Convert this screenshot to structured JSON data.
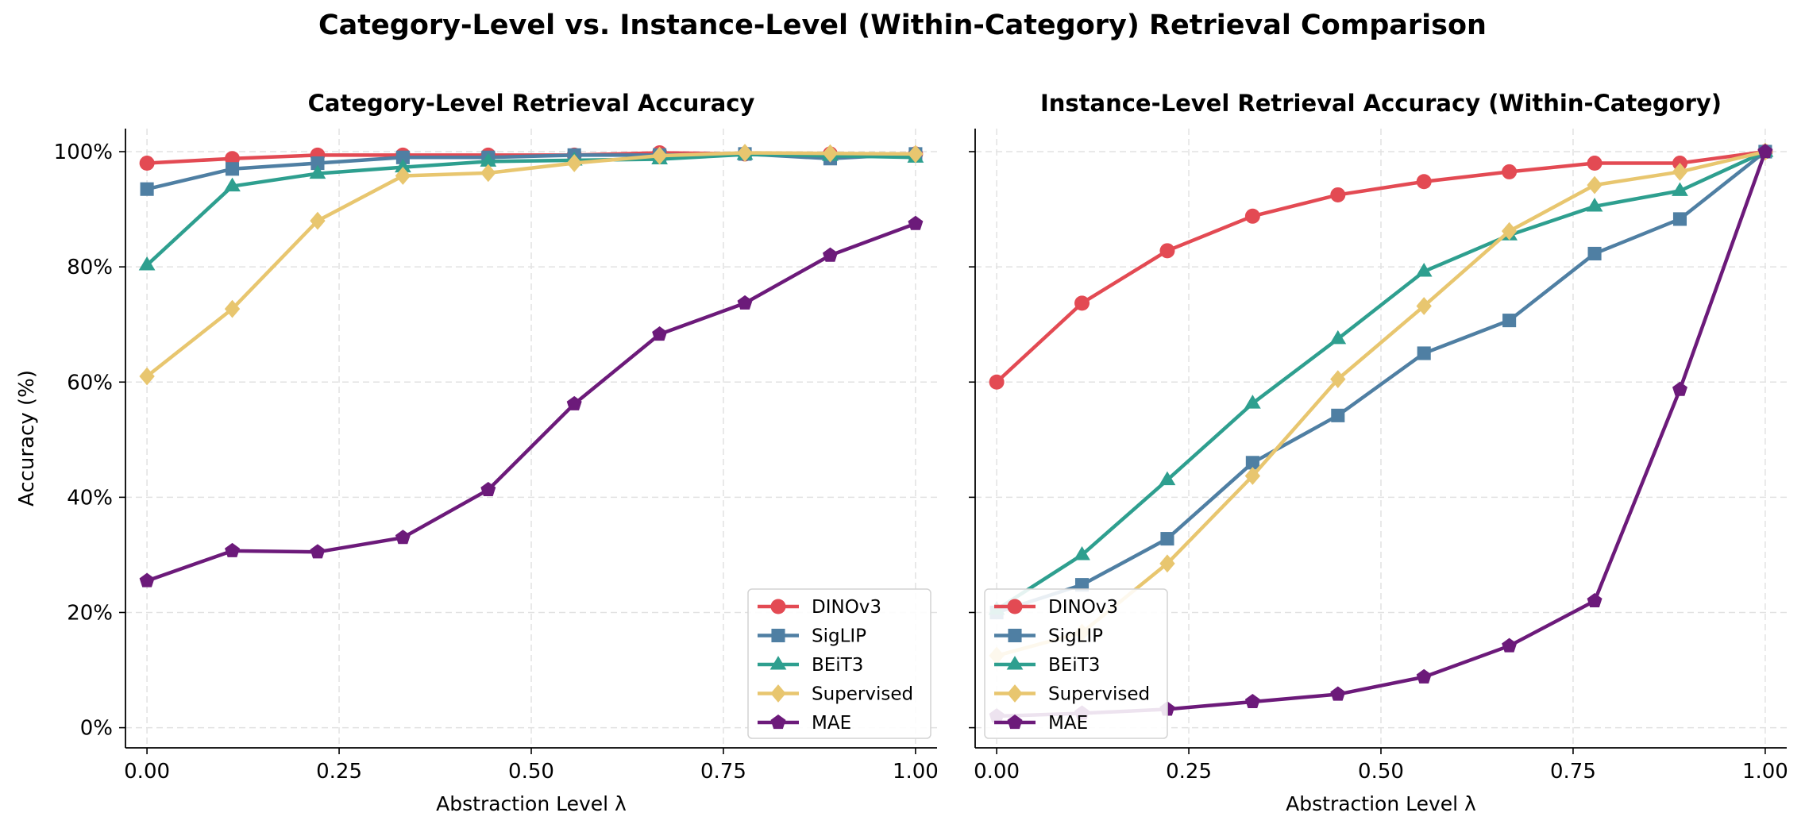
{
  "figure": {
    "suptitle": "Category-Level vs. Instance-Level (Within-Category) Retrieval Comparison"
  },
  "colors": {
    "DINOv3": "#e34a53",
    "SigLIP": "#4f7fa3",
    "BEiT3": "#2e9f8f",
    "Supervised": "#e8c66f",
    "MAE": "#6c1a7a"
  },
  "markers": {
    "DINOv3": "circle",
    "SigLIP": "square",
    "BEiT3": "triangle",
    "Supervised": "diamond",
    "MAE": "pentagon"
  },
  "chart_data": [
    {
      "type": "line",
      "title": "Category-Level Retrieval Accuracy",
      "xlabel": "Abstraction Level λ",
      "ylabel": "Accuracy (%)",
      "x": [
        0.0,
        0.111,
        0.222,
        0.333,
        0.444,
        0.556,
        0.667,
        0.778,
        0.889,
        1.0
      ],
      "xlim": [
        -0.028,
        1.028
      ],
      "ylim": [
        -0.035,
        1.04
      ],
      "xticks": [
        0.0,
        0.25,
        0.5,
        0.75,
        1.0
      ],
      "xtick_labels": [
        "0.00",
        "0.25",
        "0.50",
        "0.75",
        "1.00"
      ],
      "yticks": [
        0.0,
        0.2,
        0.4,
        0.6,
        0.8,
        1.0
      ],
      "ytick_labels": [
        "0%",
        "20%",
        "40%",
        "60%",
        "80%",
        "100%"
      ],
      "grid": true,
      "legend_position": "lower right",
      "series": [
        {
          "name": "DINOv3",
          "values": [
            0.98,
            0.988,
            0.994,
            0.994,
            0.994,
            0.994,
            0.998,
            0.996,
            0.996,
            0.996
          ]
        },
        {
          "name": "SigLIP",
          "values": [
            0.935,
            0.97,
            0.98,
            0.99,
            0.99,
            0.994,
            0.994,
            0.996,
            0.988,
            0.996
          ]
        },
        {
          "name": "BEiT3",
          "values": [
            0.803,
            0.94,
            0.962,
            0.973,
            0.983,
            0.985,
            0.987,
            0.995,
            0.993,
            0.99
          ]
        },
        {
          "name": "Supervised",
          "values": [
            0.61,
            0.727,
            0.88,
            0.958,
            0.963,
            0.98,
            0.993,
            0.998,
            0.997,
            0.996
          ]
        },
        {
          "name": "MAE",
          "values": [
            0.255,
            0.307,
            0.305,
            0.33,
            0.413,
            0.562,
            0.683,
            0.737,
            0.82,
            0.875
          ]
        }
      ]
    },
    {
      "type": "line",
      "title": "Instance-Level Retrieval Accuracy (Within-Category)",
      "xlabel": "Abstraction Level λ",
      "ylabel": "",
      "x": [
        0.0,
        0.111,
        0.222,
        0.333,
        0.444,
        0.556,
        0.667,
        0.778,
        0.889,
        1.0
      ],
      "xlim": [
        -0.028,
        1.028
      ],
      "ylim": [
        -0.035,
        1.04
      ],
      "xticks": [
        0.0,
        0.25,
        0.5,
        0.75,
        1.0
      ],
      "xtick_labels": [
        "0.00",
        "0.25",
        "0.50",
        "0.75",
        "1.00"
      ],
      "yticks": [
        0.0,
        0.2,
        0.4,
        0.6,
        0.8,
        1.0
      ],
      "ytick_labels": [],
      "grid": true,
      "legend_position": "lower left",
      "series": [
        {
          "name": "DINOv3",
          "values": [
            0.6,
            0.737,
            0.828,
            0.888,
            0.925,
            0.948,
            0.965,
            0.98,
            0.98,
            1.0
          ]
        },
        {
          "name": "SigLIP",
          "values": [
            0.2,
            0.248,
            0.328,
            0.46,
            0.542,
            0.65,
            0.707,
            0.823,
            0.883,
            1.0
          ]
        },
        {
          "name": "BEiT3",
          "values": [
            0.205,
            0.3,
            0.43,
            0.563,
            0.675,
            0.792,
            0.855,
            0.905,
            0.932,
            1.0
          ]
        },
        {
          "name": "Supervised",
          "values": [
            0.125,
            0.165,
            0.285,
            0.437,
            0.605,
            0.732,
            0.862,
            0.942,
            0.965,
            1.0
          ]
        },
        {
          "name": "MAE",
          "values": [
            0.02,
            0.025,
            0.032,
            0.045,
            0.058,
            0.088,
            0.142,
            0.22,
            0.587,
            1.0
          ]
        }
      ]
    }
  ]
}
